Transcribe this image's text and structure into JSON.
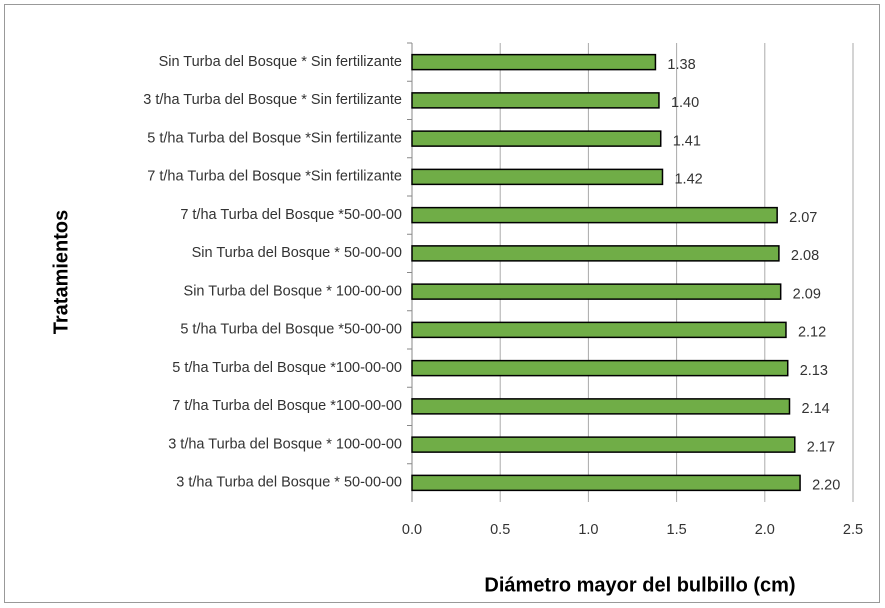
{
  "chart_data": {
    "type": "barh",
    "x_label": "Diámetro mayor del bulbillo (cm)",
    "y_label": "Tratamientos",
    "categories": [
      "Sin Turba del Bosque * Sin fertilizante",
      "3 t/ha Turba del Bosque * Sin fertilizante",
      "5 t/ha Turba del Bosque *Sin fertilizante",
      "7 t/ha Turba del Bosque *Sin fertilizante",
      "7 t/ha Turba del Bosque *50-00-00",
      "Sin Turba del Bosque * 50-00-00",
      "Sin Turba del Bosque * 100-00-00",
      "5 t/ha Turba del Bosque *50-00-00",
      "5 t/ha Turba del Bosque *100-00-00",
      "7 t/ha Turba del Bosque *100-00-00",
      "3 t/ha Turba del Bosque * 100-00-00",
      "3 t/ha Turba del Bosque * 50-00-00"
    ],
    "values": [
      1.38,
      1.4,
      1.41,
      1.42,
      2.07,
      2.08,
      2.09,
      2.12,
      2.13,
      2.14,
      2.17,
      2.2
    ],
    "value_labels": [
      "1.38",
      "1.40",
      "1.41",
      "1.42",
      "2.07",
      "2.08",
      "2.09",
      "2.12",
      "2.13",
      "2.14",
      "2.17",
      "2.20"
    ],
    "color": "#70ad47",
    "xlim": [
      0,
      2.5
    ],
    "xticks": [
      {
        "value": 0,
        "label": "0.0"
      },
      {
        "value": 0.5,
        "label": "0.5"
      },
      {
        "value": 1,
        "label": "1.0"
      },
      {
        "value": 1.5,
        "label": "1.5"
      },
      {
        "value": 2,
        "label": "2.0"
      },
      {
        "value": 2.5,
        "label": "2.5"
      }
    ],
    "grid": true
  }
}
